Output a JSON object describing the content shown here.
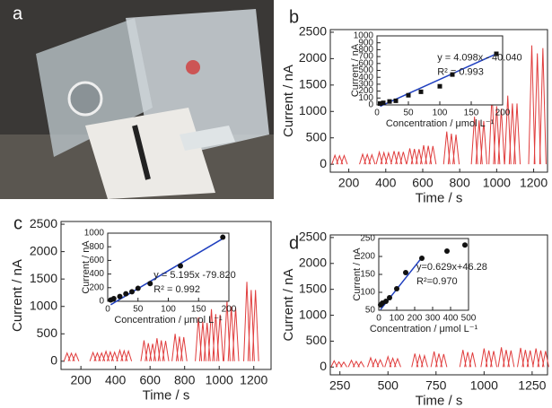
{
  "photo": {
    "label": "a"
  },
  "chart_data": [
    {
      "type": "peaks",
      "panel_label": "b",
      "xlabel": "Time / s",
      "ylabel": "Current / nA",
      "color": "#e03c3c",
      "xlim": [
        100,
        1275
      ],
      "xticks": [
        200,
        400,
        600,
        800,
        1000,
        1200
      ],
      "ylim": [
        -150,
        2550
      ],
      "yticks": [
        0,
        500,
        1000,
        1500,
        2000,
        2500
      ],
      "x": [
        125,
        150,
        175,
        275,
        300,
        325,
        365,
        390,
        415,
        445,
        470,
        495,
        530,
        555,
        580,
        605,
        630,
        655,
        730,
        755,
        780,
        880,
        905,
        930,
        975,
        1000,
        1025,
        1060,
        1085,
        1110,
        1190,
        1220,
        1250
      ],
      "values": [
        170,
        160,
        165,
        190,
        185,
        180,
        230,
        220,
        215,
        250,
        240,
        235,
        300,
        290,
        285,
        360,
        350,
        345,
        620,
        580,
        560,
        900,
        830,
        820,
        1350,
        1100,
        1050,
        1300,
        1150,
        1150,
        2250,
        2100,
        2200
      ]
    },
    {
      "type": "scatter",
      "xlabel": "Concentration / μmol L⁻¹",
      "ylabel": "Current / nA",
      "marker": "square",
      "color": "#111",
      "xlim": [
        0,
        200
      ],
      "xticks": [
        0,
        50,
        100,
        150,
        200
      ],
      "ylim": [
        0,
        1000
      ],
      "yticks": [
        0,
        100,
        200,
        300,
        400,
        500,
        600,
        700,
        800,
        900,
        1000
      ],
      "x": [
        5,
        10,
        20,
        30,
        50,
        70,
        100,
        120,
        190
      ],
      "values": [
        20,
        30,
        50,
        60,
        140,
        190,
        270,
        440,
        740
      ],
      "fit": {
        "color": "#1f3fbf",
        "x": [
          5,
          190
        ],
        "values": [
          -20,
          740
        ]
      },
      "annotations": [
        "y = 4.098x - 40.040",
        "R² = 0.993"
      ]
    },
    {
      "type": "peaks",
      "panel_label": "c",
      "xlabel": "Time / s",
      "ylabel": "Current / nA",
      "color": "#e03c3c",
      "xlim": [
        85,
        1300
      ],
      "xticks": [
        200,
        400,
        600,
        800,
        1000,
        1200
      ],
      "ylim": [
        -150,
        2550
      ],
      "yticks": [
        0,
        500,
        1000,
        1500,
        2000,
        2500
      ],
      "x": [
        120,
        145,
        170,
        270,
        295,
        320,
        345,
        370,
        395,
        425,
        450,
        475,
        565,
        590,
        615,
        640,
        665,
        690,
        745,
        770,
        795,
        880,
        905,
        930,
        955,
        980,
        1005,
        1045,
        1070,
        1095,
        1160,
        1185,
        1210
      ],
      "values": [
        150,
        145,
        140,
        160,
        150,
        150,
        180,
        170,
        165,
        200,
        190,
        185,
        380,
        330,
        320,
        420,
        380,
        370,
        500,
        450,
        440,
        800,
        720,
        700,
        950,
        860,
        850,
        1100,
        1000,
        980,
        1450,
        1300,
        1300
      ]
    },
    {
      "type": "scatter",
      "xlabel": "Concentration / μmol L⁻¹",
      "ylabel": "Current / nA",
      "marker": "circle",
      "color": "#111",
      "xlim": [
        0,
        200
      ],
      "xticks": [
        0,
        50,
        100,
        150,
        200
      ],
      "ylim": [
        0,
        1000
      ],
      "yticks": [
        0,
        200,
        400,
        600,
        800,
        1000
      ],
      "x": [
        5,
        10,
        20,
        30,
        40,
        50,
        70,
        120,
        190
      ],
      "values": [
        20,
        40,
        70,
        110,
        140,
        190,
        260,
        520,
        940
      ],
      "fit": {
        "color": "#1f3fbf",
        "x": [
          5,
          190
        ],
        "values": [
          -50,
          920
        ]
      },
      "annotations": [
        "y = 5.195x -79.820",
        "R² = 0.992"
      ]
    },
    {
      "type": "peaks",
      "panel_label": "d",
      "xlabel": "Time / s",
      "ylabel": "Current / nA",
      "color": "#e03c3c",
      "xlim": [
        200,
        1330
      ],
      "xticks": [
        250,
        500,
        750,
        1000,
        1250
      ],
      "ylim": [
        -150,
        2550
      ],
      "yticks": [
        0,
        500,
        1000,
        1500,
        2000,
        2500
      ],
      "x": [
        220,
        245,
        270,
        310,
        335,
        360,
        410,
        435,
        460,
        500,
        525,
        550,
        640,
        665,
        690,
        740,
        765,
        790,
        890,
        915,
        940,
        1000,
        1025,
        1050,
        1090,
        1115,
        1140,
        1190,
        1215,
        1240,
        1270,
        1295,
        1320
      ],
      "values": [
        120,
        100,
        95,
        130,
        110,
        105,
        180,
        150,
        140,
        200,
        170,
        160,
        260,
        230,
        220,
        300,
        260,
        250,
        330,
        290,
        280,
        360,
        320,
        310,
        380,
        330,
        320,
        370,
        330,
        320,
        360,
        320,
        310
      ]
    },
    {
      "type": "scatter",
      "xlabel": "Concentration / μmol L⁻¹",
      "ylabel": "Current / nA",
      "marker": "circle",
      "color": "#111",
      "xlim": [
        0,
        500
      ],
      "xticks": [
        0,
        100,
        200,
        300,
        400,
        500
      ],
      "ylim": [
        50,
        250
      ],
      "yticks": [
        50,
        100,
        150,
        200,
        250
      ],
      "x": [
        10,
        20,
        40,
        60,
        100,
        150,
        240,
        380,
        480
      ],
      "values": [
        65,
        70,
        75,
        85,
        110,
        155,
        195,
        215,
        232
      ],
      "fit": {
        "color": "#1f3fbf",
        "x": [
          10,
          240
        ],
        "values": [
          52,
          197
        ]
      },
      "annotations": [
        "y=0.629x+46.28",
        "R²=0.970"
      ]
    }
  ]
}
